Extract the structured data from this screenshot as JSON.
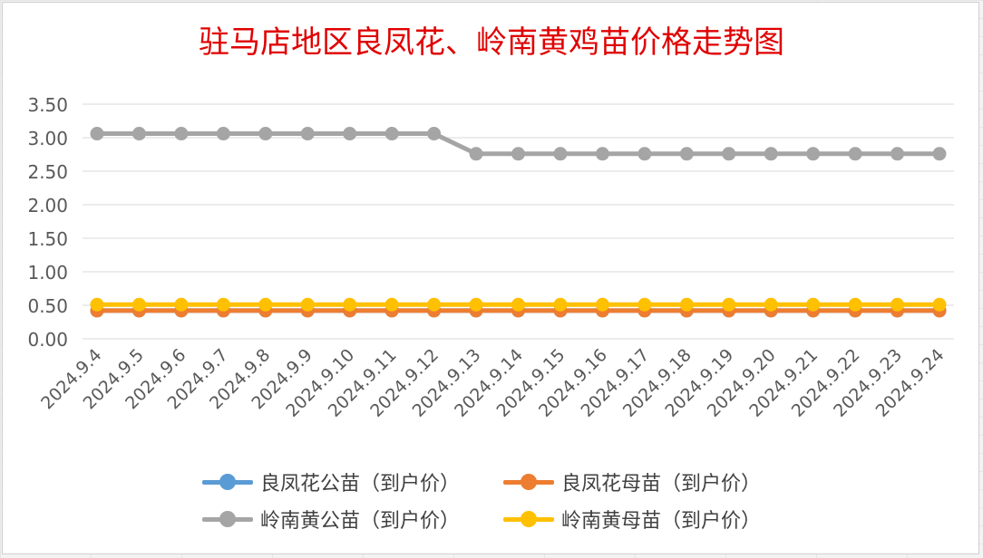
{
  "chart_data": {
    "type": "line",
    "title": "驻马店地区良凤花、岭南黄鸡苗价格走势图",
    "categories": [
      "2024.9.4",
      "2024.9.5",
      "2024.9.6",
      "2024.9.7",
      "2024.9.8",
      "2024.9.9",
      "2024.9.10",
      "2024.9.11",
      "2024.9.12",
      "2024.9.13",
      "2024.9.14",
      "2024.9.15",
      "2024.9.16",
      "2024.9.17",
      "2024.9.18",
      "2024.9.19",
      "2024.9.20",
      "2024.9.21",
      "2024.9.22",
      "2024.9.23",
      "2024.9.24"
    ],
    "yticks": [
      "0.00",
      "0.50",
      "1.00",
      "1.50",
      "2.00",
      "2.50",
      "3.00",
      "3.50"
    ],
    "ylim": [
      0,
      3.5
    ],
    "grid": true,
    "legend_position": "bottom",
    "series": [
      {
        "name": "良凤花公苗（到户价）",
        "color": "#5b9bd5",
        "values": [
          0.42,
          0.42,
          0.42,
          0.42,
          0.42,
          0.42,
          0.42,
          0.42,
          0.42,
          0.42,
          0.42,
          0.42,
          0.42,
          0.42,
          0.42,
          0.42,
          0.42,
          0.42,
          0.42,
          0.42,
          0.42
        ]
      },
      {
        "name": "良凤花母苗（到户价）",
        "color": "#ed7d31",
        "values": [
          0.42,
          0.42,
          0.42,
          0.42,
          0.42,
          0.42,
          0.42,
          0.42,
          0.42,
          0.42,
          0.42,
          0.42,
          0.42,
          0.42,
          0.42,
          0.42,
          0.42,
          0.42,
          0.42,
          0.42,
          0.42
        ]
      },
      {
        "name": "岭南黄公苗（到户价）",
        "color": "#a5a5a5",
        "values": [
          3.06,
          3.06,
          3.06,
          3.06,
          3.06,
          3.06,
          3.06,
          3.06,
          3.06,
          2.76,
          2.76,
          2.76,
          2.76,
          2.76,
          2.76,
          2.76,
          2.76,
          2.76,
          2.76,
          2.76,
          2.76
        ]
      },
      {
        "name": "岭南黄母苗（到户价）",
        "color": "#ffc000",
        "values": [
          0.51,
          0.51,
          0.51,
          0.51,
          0.51,
          0.51,
          0.51,
          0.51,
          0.51,
          0.51,
          0.51,
          0.51,
          0.51,
          0.51,
          0.51,
          0.51,
          0.51,
          0.51,
          0.51,
          0.51,
          0.51
        ]
      }
    ]
  }
}
